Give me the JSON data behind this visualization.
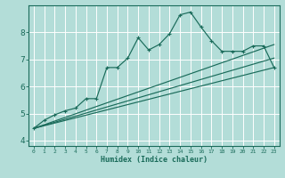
{
  "xlabel": "Humidex (Indice chaleur)",
  "bg_color": "#b3ddd8",
  "grid_color": "#ffffff",
  "line_color": "#1a6b5a",
  "xlim": [
    -0.5,
    23.5
  ],
  "ylim": [
    3.8,
    9.0
  ],
  "x_ticks": [
    0,
    1,
    2,
    3,
    4,
    5,
    6,
    7,
    8,
    9,
    10,
    11,
    12,
    13,
    14,
    15,
    16,
    17,
    18,
    19,
    20,
    21,
    22,
    23
  ],
  "y_ticks": [
    4,
    5,
    6,
    7,
    8
  ],
  "main_line_x": [
    0,
    1,
    2,
    3,
    4,
    5,
    6,
    7,
    8,
    9,
    10,
    11,
    12,
    13,
    14,
    15,
    16,
    17,
    18,
    19,
    20,
    21,
    22,
    23
  ],
  "main_line_y": [
    4.45,
    4.75,
    4.95,
    5.1,
    5.2,
    5.55,
    5.55,
    6.7,
    6.7,
    7.05,
    7.8,
    7.35,
    7.55,
    7.95,
    8.65,
    8.75,
    8.2,
    7.7,
    7.3,
    7.3,
    7.3,
    7.5,
    7.5,
    6.7
  ],
  "line2_x": [
    0,
    23
  ],
  "line2_y": [
    4.45,
    6.7
  ],
  "line3_x": [
    0,
    23
  ],
  "line3_y": [
    4.45,
    7.05
  ],
  "line4_x": [
    0,
    23
  ],
  "line4_y": [
    4.45,
    7.55
  ]
}
